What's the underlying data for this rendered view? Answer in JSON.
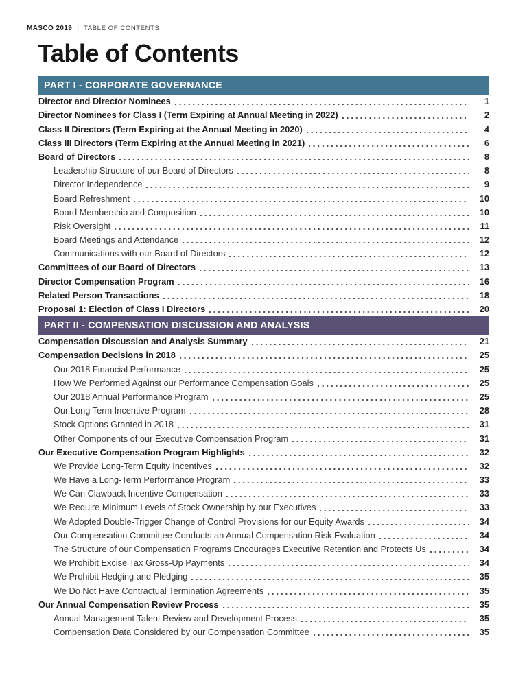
{
  "header": {
    "brand": "MASCO 2019",
    "separator": "|",
    "doc_label": "TABLE OF CONTENTS",
    "title": "Table of Contents"
  },
  "colors": {
    "part1_bar": "#427691",
    "part2_bar": "#5A5276",
    "text_dark": "#231F20",
    "dot_leader": "#4D4D4D"
  },
  "sections": [
    {
      "id": "part-1",
      "heading": "PART I - CORPORATE GOVERNANCE",
      "bar_color": "#427691",
      "entries": [
        {
          "label": "Director and Director Nominees",
          "page": "1",
          "bold": true,
          "indent": 0
        },
        {
          "label": "Director Nominees for Class I (Term Expiring at Annual Meeting in 2022)",
          "page": "2",
          "bold": true,
          "indent": 0
        },
        {
          "label": "Class II Directors (Term Expiring at the Annual Meeting in 2020)",
          "page": "4",
          "bold": true,
          "indent": 0
        },
        {
          "label": "Class III Directors (Term Expiring at the Annual Meeting in 2021)",
          "page": "6",
          "bold": true,
          "indent": 0
        },
        {
          "label": "Board of Directors",
          "page": "8",
          "bold": true,
          "indent": 0
        },
        {
          "label": "Leadership Structure of our Board of Directors",
          "page": "8",
          "bold": false,
          "indent": 1
        },
        {
          "label": "Director Independence",
          "page": "9",
          "bold": false,
          "indent": 1
        },
        {
          "label": "Board Refreshment",
          "page": "10",
          "bold": false,
          "indent": 1
        },
        {
          "label": "Board Membership and Composition",
          "page": "10",
          "bold": false,
          "indent": 1
        },
        {
          "label": "Risk Oversight",
          "page": "11",
          "bold": false,
          "indent": 1
        },
        {
          "label": "Board Meetings and Attendance",
          "page": "12",
          "bold": false,
          "indent": 1
        },
        {
          "label": "Communications with our Board of Directors",
          "page": "12",
          "bold": false,
          "indent": 1
        },
        {
          "label": "Committees of our Board of Directors",
          "page": "13",
          "bold": true,
          "indent": 0
        },
        {
          "label": "Director Compensation Program",
          "page": "16",
          "bold": true,
          "indent": 0
        },
        {
          "label": "Related Person Transactions",
          "page": "18",
          "bold": true,
          "indent": 0
        },
        {
          "label": "Proposal 1: Election of Class I Directors",
          "page": "20",
          "bold": true,
          "indent": 0
        }
      ]
    },
    {
      "id": "part-2",
      "heading": "PART II - COMPENSATION DISCUSSION AND ANALYSIS",
      "bar_color": "#5A5276",
      "entries": [
        {
          "label": "Compensation Discussion and Analysis Summary",
          "page": "21",
          "bold": true,
          "indent": 0
        },
        {
          "label": "Compensation Decisions in 2018",
          "page": "25",
          "bold": true,
          "indent": 0
        },
        {
          "label": "Our 2018 Financial Performance",
          "page": "25",
          "bold": false,
          "indent": 1
        },
        {
          "label": "How We Performed Against our Performance Compensation Goals",
          "page": "25",
          "bold": false,
          "indent": 1
        },
        {
          "label": "Our 2018 Annual Performance Program",
          "page": "25",
          "bold": false,
          "indent": 1
        },
        {
          "label": "Our Long Term Incentive Program",
          "page": "28",
          "bold": false,
          "indent": 1
        },
        {
          "label": "Stock Options Granted in 2018",
          "page": "31",
          "bold": false,
          "indent": 1
        },
        {
          "label": "Other Components of our Executive Compensation Program",
          "page": "31",
          "bold": false,
          "indent": 1
        },
        {
          "label": "Our Executive Compensation Program Highlights",
          "page": "32",
          "bold": true,
          "indent": 0
        },
        {
          "label": "We Provide Long-Term Equity Incentives",
          "page": "32",
          "bold": false,
          "indent": 1
        },
        {
          "label": "We Have a Long-Term Performance Program",
          "page": "33",
          "bold": false,
          "indent": 1
        },
        {
          "label": "We Can Clawback Incentive Compensation",
          "page": "33",
          "bold": false,
          "indent": 1
        },
        {
          "label": "We Require Minimum Levels of Stock Ownership by our Executives",
          "page": "33",
          "bold": false,
          "indent": 1
        },
        {
          "label": "We Adopted Double-Trigger Change of Control Provisions for our Equity Awards",
          "page": "34",
          "bold": false,
          "indent": 1
        },
        {
          "label": "Our Compensation Committee Conducts an Annual Compensation Risk Evaluation",
          "page": "34",
          "bold": false,
          "indent": 1
        },
        {
          "label": "The Structure of our Compensation Programs Encourages Executive Retention and Protects Us",
          "page": "34",
          "bold": false,
          "indent": 1
        },
        {
          "label": "We Prohibit Excise Tax Gross-Up Payments",
          "page": "34",
          "bold": false,
          "indent": 1
        },
        {
          "label": "We Prohibit Hedging and Pledging",
          "page": "35",
          "bold": false,
          "indent": 1
        },
        {
          "label": "We Do Not Have Contractual Termination Agreements",
          "page": "35",
          "bold": false,
          "indent": 1
        },
        {
          "label": "Our Annual Compensation Review Process",
          "page": "35",
          "bold": true,
          "indent": 0
        },
        {
          "label": "Annual Management Talent Review and Development Process",
          "page": "35",
          "bold": false,
          "indent": 1
        },
        {
          "label": "Compensation Data Considered by our Compensation Committee",
          "page": "35",
          "bold": false,
          "indent": 1
        }
      ]
    }
  ]
}
